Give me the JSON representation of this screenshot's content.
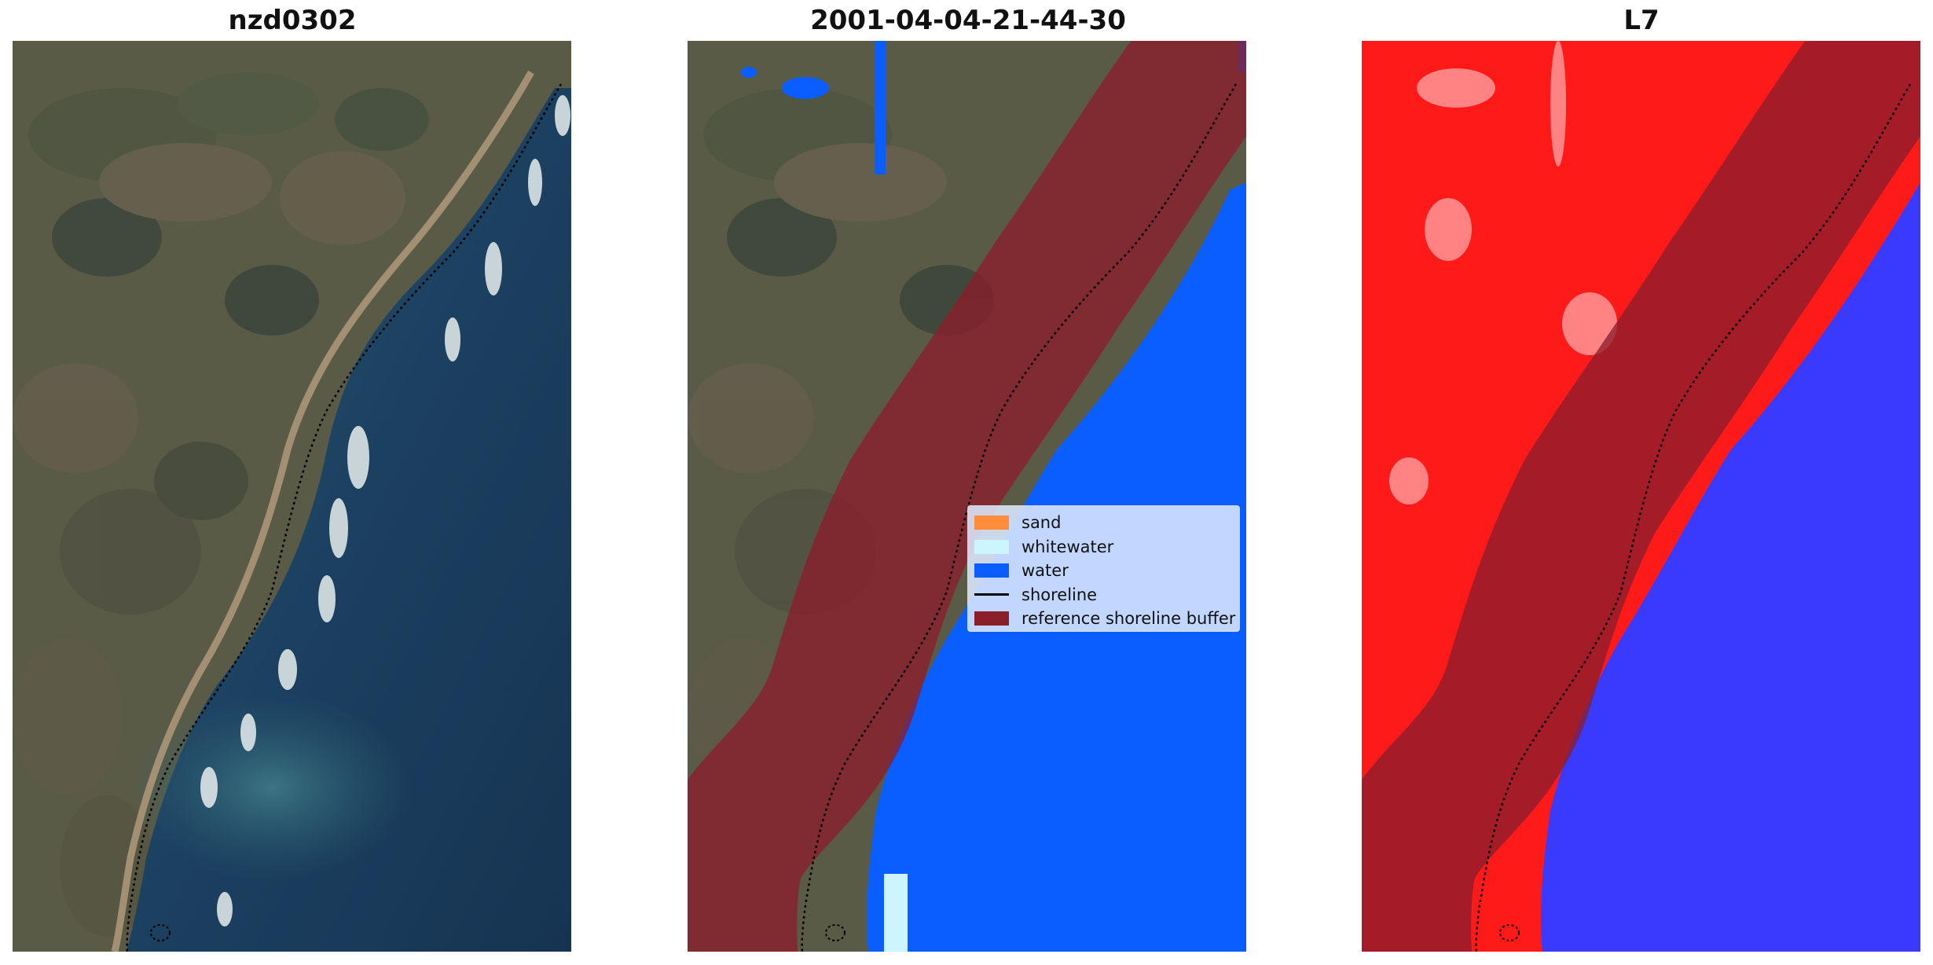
{
  "panels": [
    {
      "title": "nzd0302"
    },
    {
      "title": "2001-04-04-21-44-30"
    },
    {
      "title": "L7"
    }
  ],
  "legend": {
    "items": [
      {
        "label": "sand",
        "color": "#ff8c3a",
        "icon": "swatch"
      },
      {
        "label": "whitewater",
        "color": "#ccf5ff",
        "icon": "swatch"
      },
      {
        "label": "water",
        "color": "#0a5eff",
        "icon": "swatch"
      },
      {
        "label": "shoreline",
        "color": "#000000",
        "icon": "line"
      },
      {
        "label": "reference shoreline buffer",
        "color": "#8b1e2b",
        "icon": "swatch"
      }
    ]
  },
  "colors": {
    "land": "#5f604a",
    "ocean": "#1a3b5c",
    "buffer": "#8b1e2b",
    "water_class": "#0a5eff",
    "index_land": "#ff1a1a",
    "index_water": "#3a3aff"
  }
}
